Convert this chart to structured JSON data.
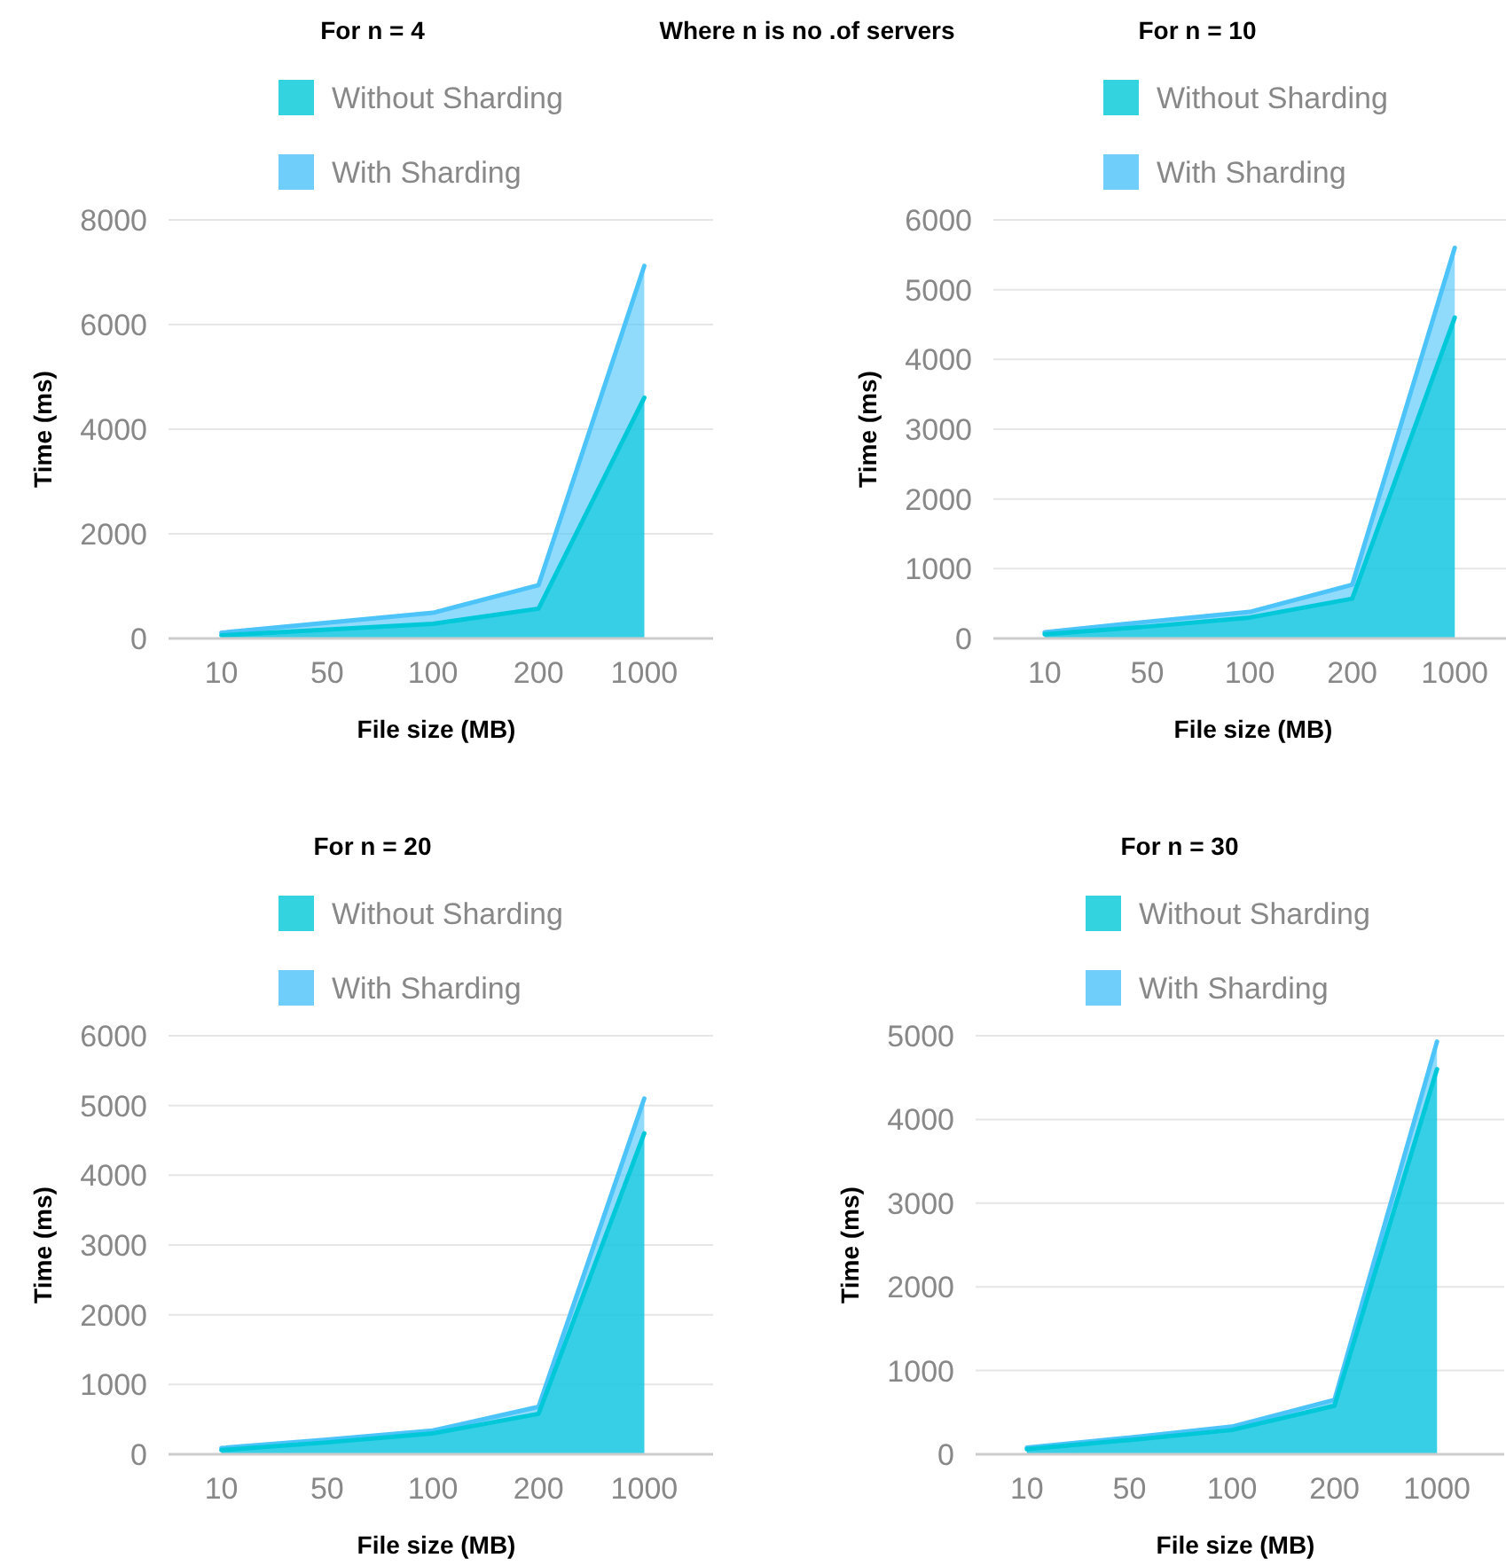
{
  "chart_data": [
    {
      "type": "area",
      "title": "For n = 4",
      "annotations": [
        "Where n is no .of servers"
      ],
      "xlabel": "File size (MB)",
      "ylabel": "Time (ms)",
      "categories": [
        "10",
        "50",
        "100",
        "200",
        "1000"
      ],
      "ylim": [
        0,
        8000
      ],
      "yticks": [
        0,
        2000,
        4000,
        6000,
        8000
      ],
      "grid": "y",
      "legend": "top",
      "series": [
        {
          "name": "Without Sharding",
          "color": "#00c8d8",
          "values": [
            60,
            170,
            280,
            570,
            4600
          ]
        },
        {
          "name": "With Sharding",
          "color": "#4cc3f9",
          "values": [
            110,
            300,
            490,
            1020,
            7120
          ]
        }
      ]
    },
    {
      "type": "area",
      "title": "For n = 10",
      "xlabel": "File size (MB)",
      "ylabel": "Time (ms)",
      "categories": [
        "10",
        "50",
        "100",
        "200",
        "1000"
      ],
      "ylim": [
        0,
        6000
      ],
      "yticks": [
        0,
        1000,
        2000,
        3000,
        4000,
        5000,
        6000
      ],
      "grid": "y",
      "legend": "top",
      "series": [
        {
          "name": "Without Sharding",
          "color": "#00c8d8",
          "values": [
            60,
            170,
            300,
            570,
            4600
          ]
        },
        {
          "name": "With Sharding",
          "color": "#4cc3f9",
          "values": [
            90,
            240,
            380,
            770,
            5600
          ]
        }
      ]
    },
    {
      "type": "area",
      "title": "For n = 20",
      "xlabel": "File size (MB)",
      "ylabel": "Time (ms)",
      "categories": [
        "10",
        "50",
        "100",
        "200",
        "1000"
      ],
      "ylim": [
        0,
        6000
      ],
      "yticks": [
        0,
        1000,
        2000,
        3000,
        4000,
        5000,
        6000
      ],
      "grid": "y",
      "legend": "top",
      "series": [
        {
          "name": "Without Sharding",
          "color": "#00c8d8",
          "values": [
            60,
            170,
            300,
            580,
            4600
          ]
        },
        {
          "name": "With Sharding",
          "color": "#4cc3f9",
          "values": [
            90,
            210,
            340,
            680,
            5100
          ]
        }
      ]
    },
    {
      "type": "area",
      "title": "For n = 30",
      "xlabel": "File size (MB)",
      "ylabel": "Time (ms)",
      "categories": [
        "10",
        "50",
        "100",
        "200",
        "1000"
      ],
      "ylim": [
        0,
        5000
      ],
      "yticks": [
        0,
        1000,
        2000,
        3000,
        4000,
        5000
      ],
      "grid": "y",
      "legend": "top",
      "series": [
        {
          "name": "Without Sharding",
          "color": "#00c8d8",
          "values": [
            60,
            170,
            290,
            580,
            4600
          ]
        },
        {
          "name": "With Sharding",
          "color": "#4cc3f9",
          "values": [
            80,
            200,
            330,
            650,
            4930
          ]
        }
      ]
    }
  ]
}
